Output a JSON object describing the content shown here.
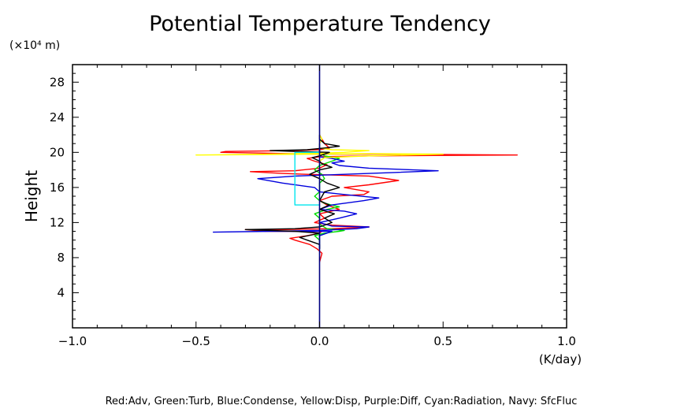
{
  "chart_data": {
    "type": "line",
    "title": "Potential Temperature Tendency",
    "xlabel": "(K/day)",
    "ylabel": "Height",
    "y_unit": "(×10⁴ m)",
    "xlim": [
      -1.0,
      1.0
    ],
    "ylim": [
      0,
      30
    ],
    "x_ticks": [
      -1.0,
      -0.5,
      0.0,
      0.5,
      1.0
    ],
    "x_tick_labels": [
      "−1.0",
      "−0.5",
      "0.0",
      "0.5",
      "1.0"
    ],
    "y_ticks": [
      4,
      8,
      12,
      16,
      20,
      24,
      28
    ],
    "y_tick_labels": [
      "4",
      "8",
      "12",
      "16",
      "20",
      "24",
      "28"
    ],
    "legend_text": "Red:Adv, Green:Turb, Blue:Condense, Yellow:Disp, Purple:Diff, Cyan:Radiation, Navy: SfcFluc",
    "grid": false,
    "series": [
      {
        "color": "#ff0000",
        "points": [
          [
            0.0,
            7.5
          ],
          [
            0.01,
            8.5
          ],
          [
            -0.01,
            9.0
          ],
          [
            -0.04,
            9.5
          ],
          [
            -0.1,
            10.0
          ],
          [
            -0.12,
            10.2
          ],
          [
            -0.05,
            10.5
          ],
          [
            0.0,
            10.8
          ],
          [
            0.01,
            11.0
          ],
          [
            -0.22,
            11.0
          ],
          [
            -0.3,
            11.2
          ],
          [
            -0.15,
            11.2
          ],
          [
            0.05,
            11.3
          ],
          [
            0.2,
            11.5
          ],
          [
            0.05,
            11.7
          ],
          [
            -0.02,
            12.0
          ],
          [
            0.02,
            12.5
          ],
          [
            0.0,
            13.0
          ],
          [
            0.08,
            13.5
          ],
          [
            0.03,
            14.0
          ],
          [
            0.0,
            14.5
          ],
          [
            0.05,
            15.0
          ],
          [
            0.18,
            15.2
          ],
          [
            0.2,
            15.5
          ],
          [
            0.1,
            16.0
          ],
          [
            0.2,
            16.3
          ],
          [
            0.32,
            16.8
          ],
          [
            0.2,
            17.3
          ],
          [
            -0.05,
            17.5
          ],
          [
            -0.15,
            17.6
          ],
          [
            -0.28,
            17.8
          ],
          [
            -0.1,
            17.9
          ],
          [
            0.0,
            18.2
          ],
          [
            0.03,
            18.6
          ],
          [
            -0.02,
            19.0
          ],
          [
            -0.05,
            19.3
          ],
          [
            0.0,
            19.5
          ],
          [
            0.2,
            19.6
          ],
          [
            0.8,
            19.7
          ],
          [
            0.3,
            19.8
          ],
          [
            0.0,
            19.8
          ],
          [
            -0.2,
            19.9
          ],
          [
            -0.4,
            20.0
          ],
          [
            -0.38,
            20.1
          ],
          [
            -0.1,
            20.2
          ],
          [
            0.0,
            20.3
          ],
          [
            0.04,
            20.5
          ],
          [
            0.02,
            21.0
          ],
          [
            0.0,
            22.0
          ]
        ]
      },
      {
        "color": "#00dd00",
        "points": [
          [
            0.0,
            9.0
          ],
          [
            0.0,
            10.0
          ],
          [
            -0.02,
            10.5
          ],
          [
            0.02,
            10.8
          ],
          [
            0.08,
            11.0
          ],
          [
            0.1,
            11.1
          ],
          [
            0.03,
            11.3
          ],
          [
            0.0,
            11.8
          ],
          [
            0.0,
            12.5
          ],
          [
            -0.02,
            13.0
          ],
          [
            0.03,
            13.5
          ],
          [
            0.08,
            13.8
          ],
          [
            0.02,
            14.2
          ],
          [
            0.0,
            14.5
          ],
          [
            -0.02,
            15.0
          ],
          [
            0.0,
            15.5
          ],
          [
            0.0,
            16.5
          ],
          [
            0.02,
            17.0
          ],
          [
            0.01,
            17.5
          ],
          [
            -0.02,
            18.0
          ],
          [
            0.0,
            18.5
          ],
          [
            0.05,
            19.0
          ],
          [
            0.08,
            19.3
          ],
          [
            0.02,
            19.6
          ],
          [
            0.0,
            20.0
          ],
          [
            0.0,
            21.0
          ]
        ]
      },
      {
        "color": "#0000dd",
        "points": [
          [
            0.0,
            9.0
          ],
          [
            0.0,
            10.5
          ],
          [
            0.03,
            10.8
          ],
          [
            0.05,
            11.0
          ],
          [
            -0.2,
            11.0
          ],
          [
            -0.43,
            10.9
          ],
          [
            -0.2,
            11.0
          ],
          [
            0.0,
            11.1
          ],
          [
            0.15,
            11.3
          ],
          [
            0.2,
            11.5
          ],
          [
            0.05,
            11.6
          ],
          [
            0.0,
            12.0
          ],
          [
            0.08,
            12.5
          ],
          [
            0.15,
            13.0
          ],
          [
            0.1,
            13.3
          ],
          [
            0.0,
            13.5
          ],
          [
            0.05,
            14.0
          ],
          [
            0.18,
            14.5
          ],
          [
            0.24,
            14.8
          ],
          [
            0.1,
            15.2
          ],
          [
            0.0,
            15.5
          ],
          [
            -0.02,
            16.0
          ],
          [
            -0.15,
            16.5
          ],
          [
            -0.25,
            17.0
          ],
          [
            -0.1,
            17.3
          ],
          [
            0.1,
            17.5
          ],
          [
            0.3,
            17.7
          ],
          [
            0.48,
            17.9
          ],
          [
            0.2,
            18.2
          ],
          [
            0.08,
            18.5
          ],
          [
            0.05,
            18.8
          ],
          [
            0.1,
            19.0
          ],
          [
            0.05,
            19.3
          ],
          [
            0.0,
            19.5
          ],
          [
            0.0,
            21.0
          ]
        ]
      },
      {
        "color": "#ffff00",
        "points": [
          [
            0.0,
            19.0
          ],
          [
            0.02,
            19.4
          ],
          [
            0.2,
            19.6
          ],
          [
            0.5,
            19.8
          ],
          [
            0.2,
            19.85
          ],
          [
            0.0,
            19.8
          ],
          [
            -0.2,
            19.75
          ],
          [
            -0.5,
            19.7
          ],
          [
            -0.2,
            19.8
          ],
          [
            0.0,
            19.9
          ],
          [
            0.1,
            20.0
          ],
          [
            0.15,
            20.1
          ],
          [
            0.2,
            20.2
          ],
          [
            0.05,
            20.3
          ],
          [
            0.0,
            20.5
          ],
          [
            0.0,
            21.0
          ],
          [
            0.01,
            21.5
          ],
          [
            0.0,
            22.0
          ]
        ]
      },
      {
        "color": "#000000",
        "points": [
          [
            0.0,
            9.0
          ],
          [
            0.0,
            9.5
          ],
          [
            -0.05,
            10.0
          ],
          [
            -0.08,
            10.3
          ],
          [
            -0.03,
            10.6
          ],
          [
            0.0,
            10.8
          ],
          [
            -0.1,
            11.0
          ],
          [
            -0.3,
            11.2
          ],
          [
            -0.1,
            11.3
          ],
          [
            0.0,
            11.5
          ],
          [
            0.05,
            12.0
          ],
          [
            0.02,
            12.5
          ],
          [
            0.06,
            13.0
          ],
          [
            0.0,
            13.5
          ],
          [
            0.04,
            14.0
          ],
          [
            0.0,
            14.5
          ],
          [
            0.02,
            15.5
          ],
          [
            0.08,
            16.0
          ],
          [
            0.03,
            16.5
          ],
          [
            0.0,
            17.0
          ],
          [
            -0.04,
            17.5
          ],
          [
            0.0,
            18.0
          ],
          [
            0.05,
            18.3
          ],
          [
            0.01,
            18.7
          ],
          [
            0.0,
            19.0
          ],
          [
            -0.03,
            19.4
          ],
          [
            0.0,
            19.6
          ],
          [
            0.04,
            20.0
          ],
          [
            -0.1,
            20.1
          ],
          [
            -0.2,
            20.2
          ],
          [
            -0.05,
            20.3
          ],
          [
            0.02,
            20.5
          ],
          [
            0.08,
            20.7
          ],
          [
            0.02,
            21.0
          ],
          [
            0.0,
            21.5
          ],
          [
            0.0,
            22.0
          ]
        ]
      },
      {
        "color": "#00e5ee",
        "points": [
          [
            0.0,
            14.0
          ],
          [
            -0.1,
            14.0
          ],
          [
            -0.1,
            20.0
          ],
          [
            0.0,
            20.0
          ]
        ]
      },
      {
        "color": "#000080",
        "points": [
          [
            0.0,
            0.0
          ],
          [
            0.0,
            30.0
          ]
        ]
      }
    ]
  }
}
